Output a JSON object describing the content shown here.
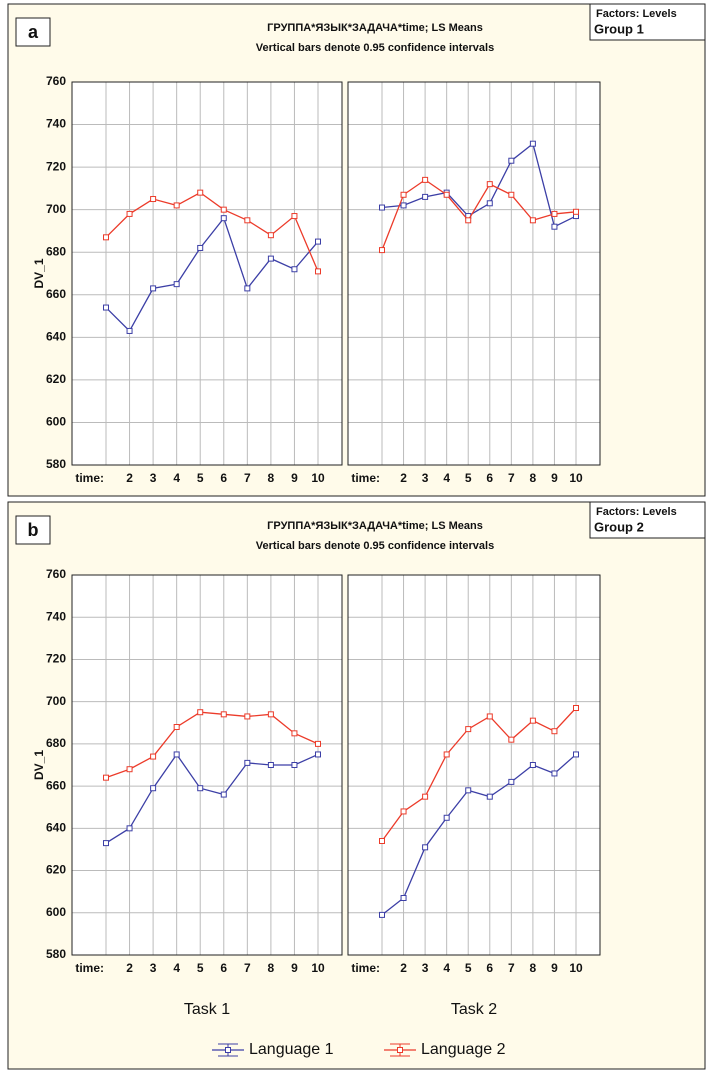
{
  "panels": [
    {
      "label": "a",
      "title": "ГРУППА*ЯЗЫК*ЗАДАЧА*time; LS Means",
      "subtitle": "Vertical bars denote 0.95 confidence intervals",
      "factors_label": "Factors: Levels",
      "group": "Group 1"
    },
    {
      "label": "b",
      "title": "ГРУППА*ЯЗЫК*ЗАДАЧА*time; LS Means",
      "subtitle": "Vertical bars denote 0.95 confidence intervals",
      "factors_label": "Factors: Levels",
      "group": "Group 2"
    }
  ],
  "chart_data": [
    {
      "type": "line",
      "ylabel": "DV_1",
      "show_ytick_labels": true,
      "grid": true,
      "categories": [
        "time:",
        "2",
        "3",
        "4",
        "5",
        "6",
        "7",
        "8",
        "9",
        "10"
      ],
      "ylim": [
        580,
        760
      ],
      "yticks": [
        580,
        600,
        620,
        640,
        660,
        680,
        700,
        720,
        740,
        760
      ],
      "series": [
        {
          "name": "Language 1",
          "color": "#3c3fa6",
          "values": [
            654,
            643,
            663,
            665,
            682,
            696,
            663,
            677,
            672,
            685
          ]
        },
        {
          "name": "Language 2",
          "color": "#ec3b2a",
          "values": [
            687,
            698,
            705,
            702,
            708,
            700,
            695,
            688,
            697,
            671
          ]
        }
      ]
    },
    {
      "type": "line",
      "show_ytick_labels": false,
      "grid": true,
      "categories": [
        "time:",
        "2",
        "3",
        "4",
        "5",
        "6",
        "7",
        "8",
        "9",
        "10"
      ],
      "ylim": [
        580,
        760
      ],
      "yticks": [
        580,
        600,
        620,
        640,
        660,
        680,
        700,
        720,
        740,
        760
      ],
      "series": [
        {
          "name": "Language 1",
          "color": "#3c3fa6",
          "values": [
            701,
            702,
            706,
            708,
            697,
            703,
            723,
            731,
            692,
            697
          ]
        },
        {
          "name": "Language 2",
          "color": "#ec3b2a",
          "values": [
            681,
            707,
            714,
            707,
            695,
            712,
            707,
            695,
            698,
            699
          ]
        }
      ]
    },
    {
      "type": "line",
      "ylabel": "DV_1",
      "xlabel": "Task 1",
      "show_ytick_labels": true,
      "grid": true,
      "categories": [
        "time:",
        "2",
        "3",
        "4",
        "5",
        "6",
        "7",
        "8",
        "9",
        "10"
      ],
      "ylim": [
        580,
        760
      ],
      "yticks": [
        580,
        600,
        620,
        640,
        660,
        680,
        700,
        720,
        740,
        760
      ],
      "series": [
        {
          "name": "Language 1",
          "color": "#3c3fa6",
          "values": [
            633,
            640,
            659,
            675,
            659,
            656,
            671,
            670,
            670,
            675
          ]
        },
        {
          "name": "Language 2",
          "color": "#ec3b2a",
          "values": [
            664,
            668,
            674,
            688,
            695,
            694,
            693,
            694,
            685,
            680
          ]
        }
      ]
    },
    {
      "type": "line",
      "xlabel": "Task 2",
      "show_ytick_labels": false,
      "grid": true,
      "categories": [
        "time:",
        "2",
        "3",
        "4",
        "5",
        "6",
        "7",
        "8",
        "9",
        "10"
      ],
      "ylim": [
        580,
        760
      ],
      "yticks": [
        580,
        600,
        620,
        640,
        660,
        680,
        700,
        720,
        740,
        760
      ],
      "series": [
        {
          "name": "Language 1",
          "color": "#3c3fa6",
          "values": [
            599,
            607,
            631,
            645,
            658,
            655,
            662,
            670,
            666,
            675
          ]
        },
        {
          "name": "Language 2",
          "color": "#ec3b2a",
          "values": [
            634,
            648,
            655,
            675,
            687,
            693,
            682,
            691,
            686,
            697
          ]
        }
      ]
    }
  ]
}
